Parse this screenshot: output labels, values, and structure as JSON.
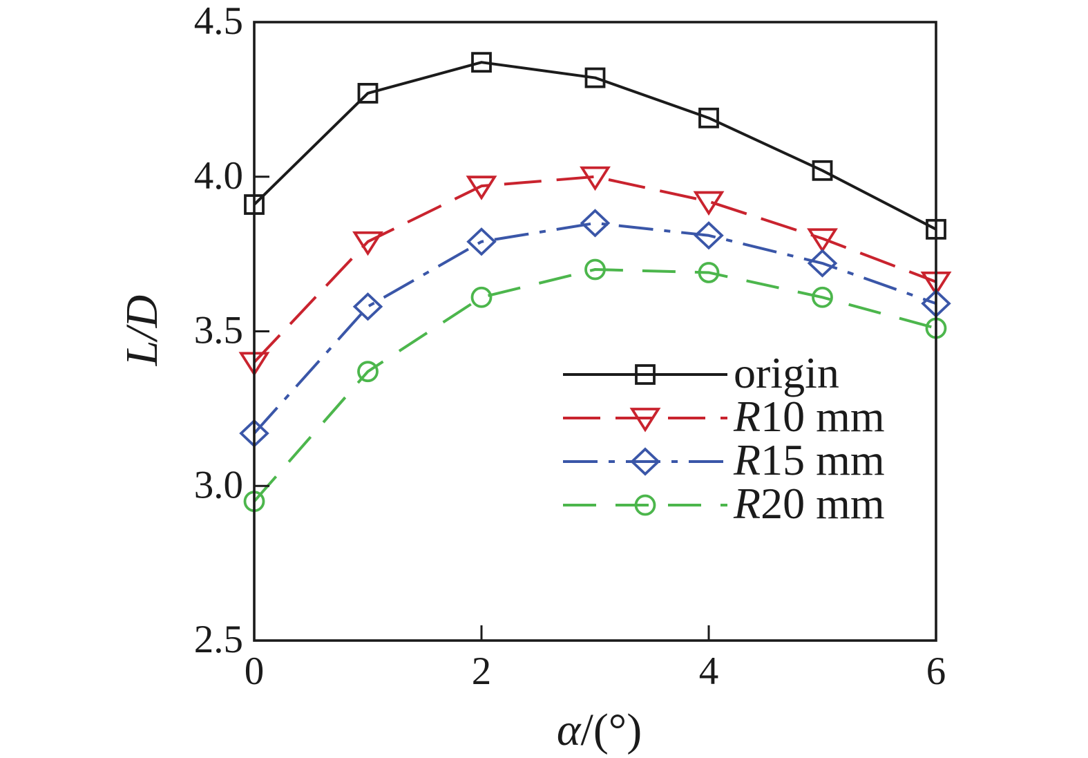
{
  "figure": {
    "background": "#ffffff"
  },
  "chart_data": {
    "type": "line",
    "title": "",
    "xlabel": "α/(°)",
    "ylabel": "L/D",
    "xlim": [
      0,
      6
    ],
    "ylim": [
      2.5,
      4.5
    ],
    "x_ticks": [
      0,
      2,
      4,
      6
    ],
    "x_tick_labels": [
      "0",
      "2",
      "4",
      "6"
    ],
    "y_ticks": [
      4.5,
      4.0,
      3.5,
      3.0,
      2.5
    ],
    "y_tick_labels": [
      "4.5",
      "4.0",
      "3.5",
      "3.0",
      "2.5"
    ],
    "grid": false,
    "frame": "closed-box",
    "axis_color": "#1b1b1b",
    "legend": {
      "position": "inside-lower-right",
      "entries": [
        "origin",
        "R10 mm",
        "R15 mm",
        "R20 mm"
      ]
    },
    "x": [
      0,
      1,
      2,
      3,
      4,
      5,
      6
    ],
    "series": [
      {
        "name": "origin",
        "color": "#1b1b1b",
        "line_style": "solid",
        "marker": "square",
        "values": [
          3.91,
          4.27,
          4.37,
          4.32,
          4.19,
          4.02,
          3.83
        ]
      },
      {
        "name": "R10 mm",
        "color": "#c9232e",
        "line_style": "dashed",
        "marker": "triangle-down",
        "values": [
          3.4,
          3.79,
          3.97,
          4.0,
          3.92,
          3.8,
          3.66
        ]
      },
      {
        "name": "R15 mm",
        "color": "#3a56a8",
        "line_style": "dash-dot",
        "marker": "diamond",
        "values": [
          3.17,
          3.58,
          3.79,
          3.85,
          3.81,
          3.72,
          3.59
        ]
      },
      {
        "name": "R20 mm",
        "color": "#4cb64c",
        "line_style": "long-dash",
        "marker": "circle",
        "values": [
          2.95,
          3.37,
          3.61,
          3.7,
          3.69,
          3.61,
          3.51
        ]
      }
    ]
  }
}
